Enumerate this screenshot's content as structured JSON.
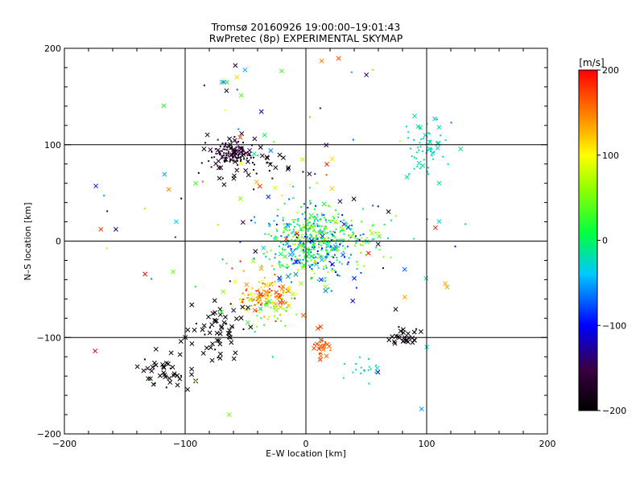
{
  "chart_data": {
    "type": "scatter",
    "title_line1": "Tromsø 20160926 19:00:00–19:01:43",
    "title_line2": "RwPretec (8p) EXPERIMENTAL SKYMAP",
    "xlabel": "E–W location [km]",
    "ylabel": "N–S location [km]",
    "xlim": [
      -200,
      200
    ],
    "ylim": [
      -200,
      200
    ],
    "xticks": [
      -200,
      -100,
      0,
      100,
      200
    ],
    "yticks": [
      -200,
      -100,
      0,
      100,
      200
    ],
    "grid": true,
    "colorbar": {
      "label": "[m/s]",
      "min": -200,
      "max": 200,
      "ticks": [
        200,
        100,
        0,
        -100,
        -200
      ]
    },
    "clusters": [
      {
        "cx": 5,
        "cy": -5,
        "sx": 20,
        "sy": 20,
        "n": 420,
        "vmin": -110,
        "vmax": 80,
        "cross": 0.12
      },
      {
        "cx": 25,
        "cy": 10,
        "sx": 22,
        "sy": 15,
        "n": 120,
        "vmin": -20,
        "vmax": 70,
        "cross": 0.1
      },
      {
        "cx": -62,
        "cy": 92,
        "sx": 9,
        "sy": 7,
        "n": 120,
        "vmin": -200,
        "vmax": -140,
        "cross": 0.25
      },
      {
        "cx": -45,
        "cy": 80,
        "sx": 20,
        "sy": 12,
        "n": 40,
        "vmin": -200,
        "vmax": -170,
        "cross": 0.5
      },
      {
        "cx": -33,
        "cy": -58,
        "sx": 11,
        "sy": 10,
        "n": 110,
        "vmin": 90,
        "vmax": 200,
        "cross": 0.3
      },
      {
        "cx": -28,
        "cy": -72,
        "sx": 12,
        "sy": 10,
        "n": 40,
        "vmin": 20,
        "vmax": 90,
        "cross": 0.2
      },
      {
        "cx": -75,
        "cy": -90,
        "sx": 14,
        "sy": 16,
        "n": 60,
        "vmin": -200,
        "vmax": -185,
        "cross": 0.85
      },
      {
        "cx": -115,
        "cy": -135,
        "sx": 10,
        "sy": 8,
        "n": 40,
        "vmin": -200,
        "vmax": -185,
        "cross": 0.85
      },
      {
        "cx": 100,
        "cy": 100,
        "sx": 9,
        "sy": 16,
        "n": 60,
        "vmin": -40,
        "vmax": -5,
        "cross": 0.25
      },
      {
        "cx": 80,
        "cy": -100,
        "sx": 7,
        "sy": 6,
        "n": 30,
        "vmin": -200,
        "vmax": -180,
        "cross": 0.8
      },
      {
        "cx": 12,
        "cy": -110,
        "sx": 4,
        "sy": 8,
        "n": 25,
        "vmin": 150,
        "vmax": 180,
        "cross": 0.6
      },
      {
        "cx": 45,
        "cy": -135,
        "sx": 7,
        "sy": 7,
        "n": 18,
        "vmin": -30,
        "vmax": 0,
        "cross": 0.1
      },
      {
        "cx": 0,
        "cy": 40,
        "sx": 90,
        "sy": 90,
        "n": 120,
        "vmin": -200,
        "vmax": 200,
        "cross": 0.6
      },
      {
        "cx": -70,
        "cy": 160,
        "sx": 25,
        "sy": 15,
        "n": 10,
        "vmin": -200,
        "vmax": 200,
        "cross": 0.5
      }
    ]
  }
}
